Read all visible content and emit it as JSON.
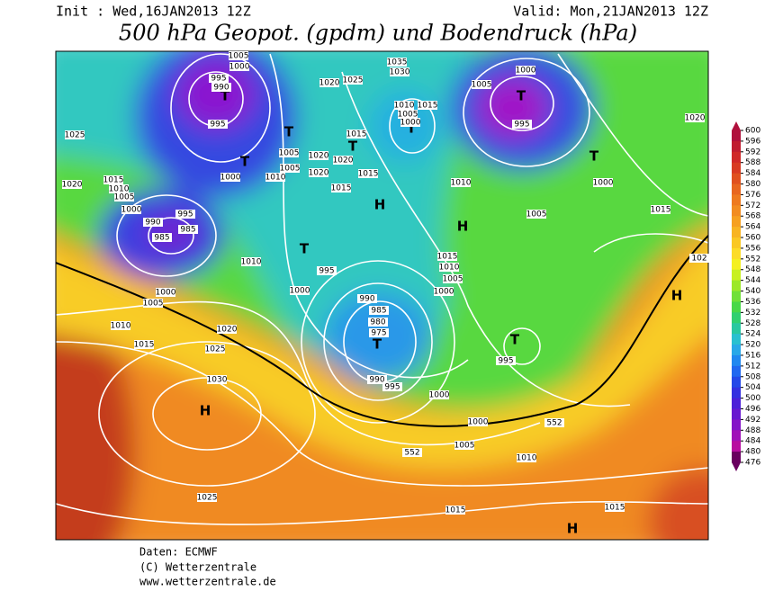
{
  "header": {
    "init": "Init : Wed,16JAN2013 12Z",
    "valid": "Valid: Mon,21JAN2013 12Z",
    "title": "500 hPa Geopot. (gpdm) und Bodendruck (hPa)"
  },
  "colorbar": {
    "ticks": [
      600,
      596,
      592,
      588,
      584,
      580,
      576,
      572,
      568,
      564,
      560,
      556,
      552,
      548,
      544,
      540,
      536,
      532,
      528,
      524,
      520,
      516,
      512,
      508,
      504,
      500,
      496,
      492,
      488,
      484,
      480,
      476
    ],
    "colors": [
      "#b0103c",
      "#c01c30",
      "#d02828",
      "#d83a22",
      "#e0501e",
      "#e8661e",
      "#ee7a1e",
      "#f28c20",
      "#f6a020",
      "#f8b422",
      "#fac824",
      "#fcdc28",
      "#f4f020",
      "#c8f020",
      "#9ce828",
      "#70e038",
      "#48d848",
      "#30d070",
      "#28c8a0",
      "#28c0d0",
      "#28a8e8",
      "#2088f0",
      "#2068f0",
      "#2448e8",
      "#3430e0",
      "#4c20d8",
      "#6818d0",
      "#8414c8",
      "#a010b8",
      "#b80ca0",
      "#6a0060"
    ]
  },
  "map": {
    "labels": [
      "H",
      "H",
      "H",
      "H",
      "H",
      "T",
      "T",
      "T",
      "T",
      "T",
      "T",
      "T",
      "T",
      "T",
      "T",
      "1000",
      "995",
      "990",
      "1005",
      "995",
      "1000",
      "1025",
      "1015",
      "1020",
      "1010",
      "1005",
      "1000",
      "995",
      "990",
      "985",
      "985",
      "1010",
      "1000",
      "1005",
      "1010",
      "1015",
      "1020",
      "1025",
      "1030",
      "1025",
      "1005",
      "1005",
      "1010",
      "1020",
      "1020",
      "1020",
      "1015",
      "1015",
      "1015",
      "1020",
      "1025",
      "1035",
      "1030",
      "1010",
      "1015",
      "1005",
      "1000",
      "1005",
      "1000",
      "995",
      "1020",
      "1000",
      "1005",
      "1015",
      "1010",
      "1015",
      "1010",
      "1005",
      "1000",
      "995",
      "1000",
      "990",
      "985",
      "980",
      "975",
      "995",
      "990",
      "995",
      "1000",
      "1000",
      "552",
      "1005",
      "552",
      "1010",
      "1015",
      "1015",
      "102"
    ]
  },
  "footer": {
    "line1": "Daten: ECMWF",
    "line2": "(C) Wetterzentrale",
    "line3": "www.wetterzentrale.de"
  }
}
